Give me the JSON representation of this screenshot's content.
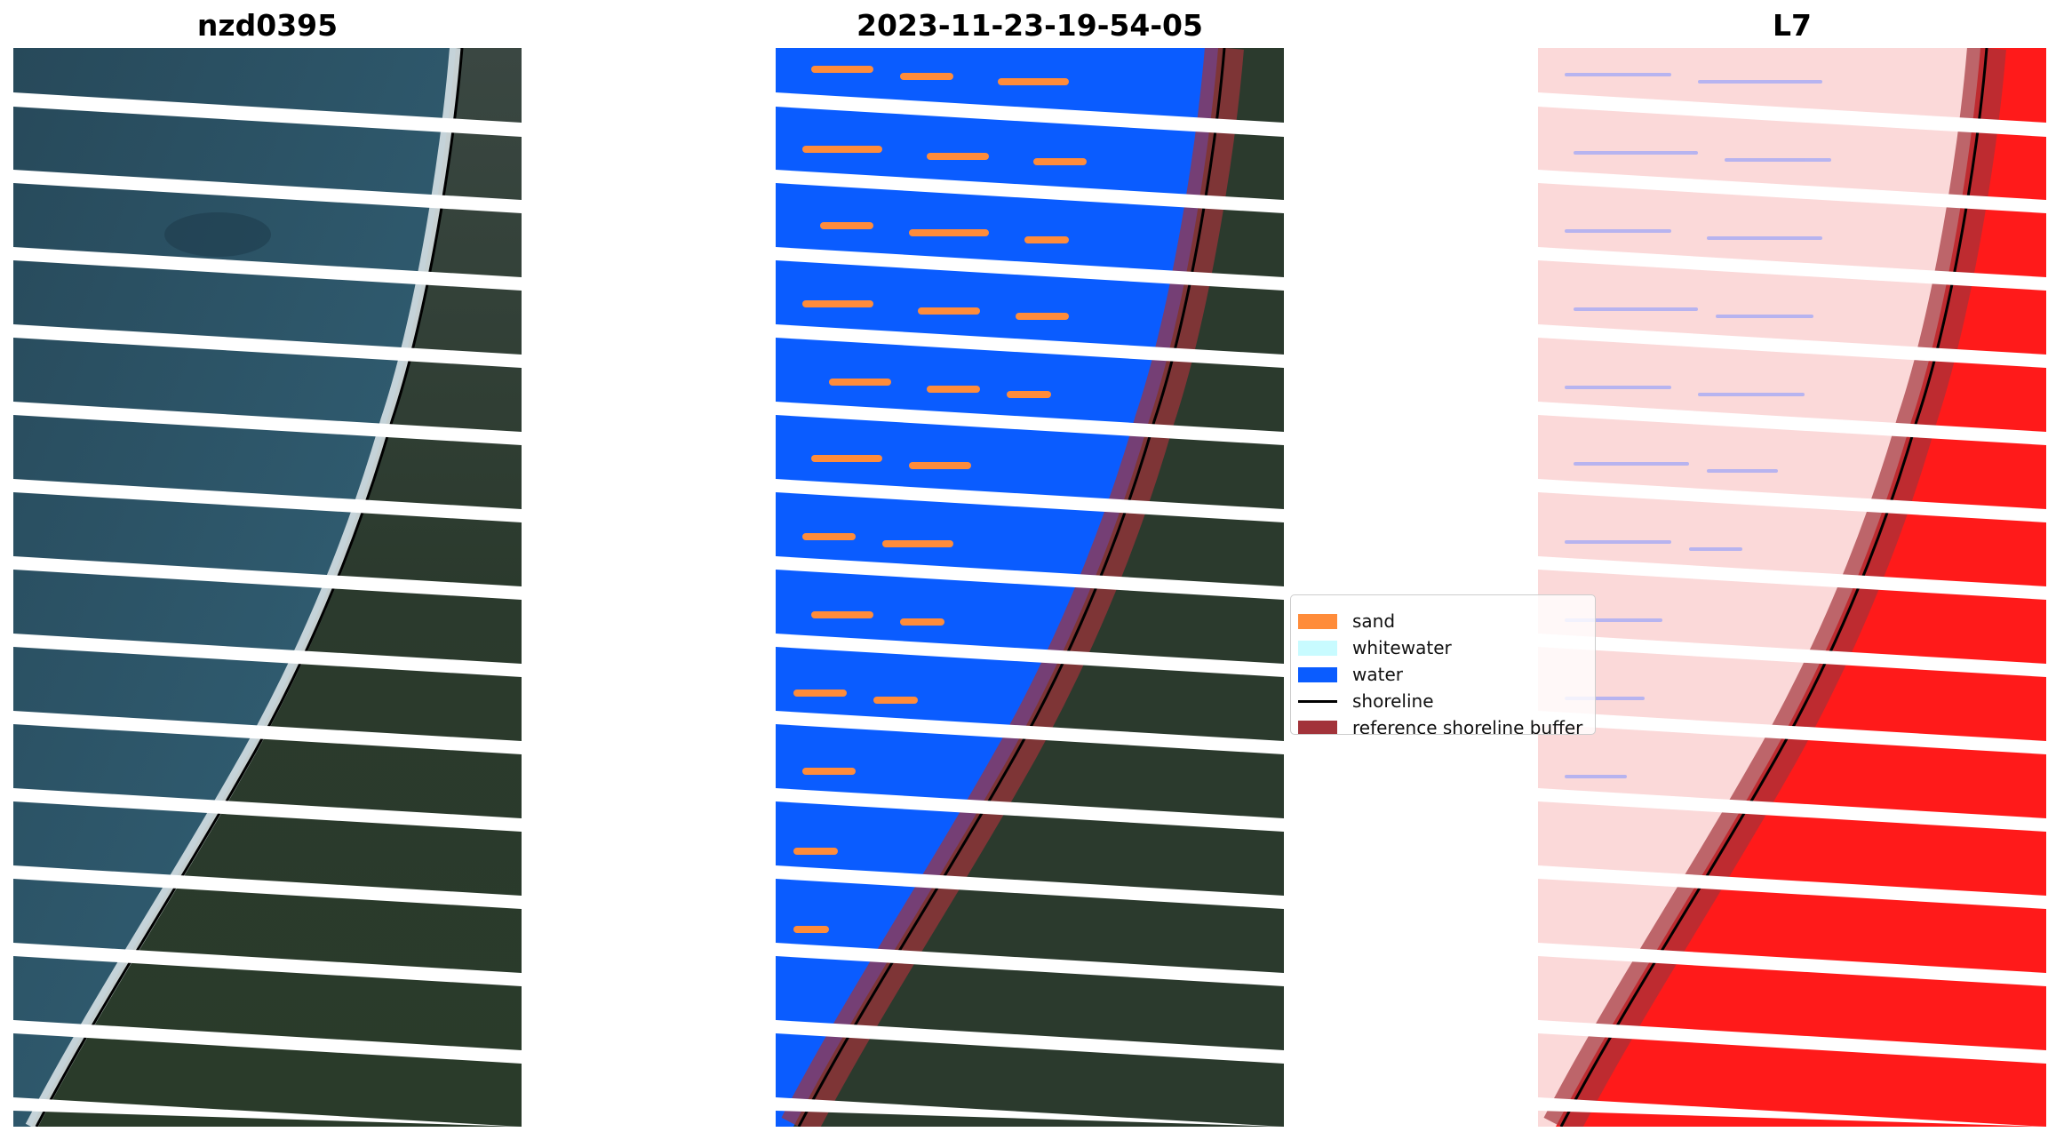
{
  "panels": [
    {
      "title": "nzd0395"
    },
    {
      "title": "2023-11-23-19-54-05"
    },
    {
      "title": "L7"
    }
  ],
  "legend": {
    "items": [
      {
        "label": "sand",
        "color": "#ff8c3a",
        "kind": "patch"
      },
      {
        "label": "whitewater",
        "color": "#c8fbff",
        "kind": "patch"
      },
      {
        "label": "water",
        "color": "#0a5cff",
        "kind": "patch"
      },
      {
        "label": "shoreline",
        "color": "#000000",
        "kind": "line"
      },
      {
        "label": "reference shoreline buffer",
        "color": "#a2333a",
        "kind": "patch"
      }
    ]
  },
  "colors": {
    "ocean": "#2f5568",
    "land": "#2a3a2c",
    "classified_water": "#0a5cff",
    "sand": "#ff8c3a",
    "buffer": "#a2333a",
    "index_land": "#ff1a1a",
    "index_ocean": "#fbd9d9"
  }
}
